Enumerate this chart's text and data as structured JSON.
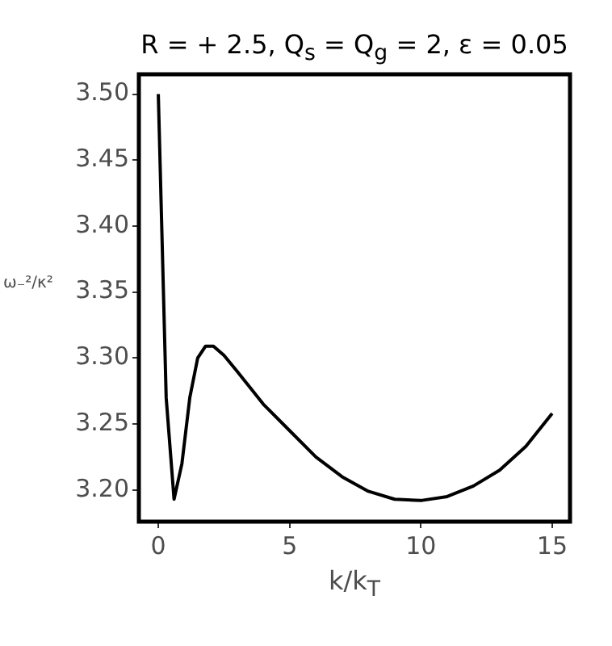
{
  "chart_data": {
    "type": "line",
    "title": "R = + 2.5, Q$_{s}$ = Q$_{g}$ = 2, ε = 0.05",
    "xlabel": "k/k$_{T}$",
    "ylabel": "ω₋²/κ²",
    "x": [
      0,
      0.3,
      0.6,
      0.9,
      1.2,
      1.5,
      1.8,
      2.1,
      2.5,
      3,
      4,
      5,
      6,
      7,
      8,
      9,
      10,
      11,
      12,
      13,
      14,
      15
    ],
    "series": [
      {
        "color": "#000000",
        "values": [
          3.5,
          3.27,
          3.193,
          3.22,
          3.27,
          3.3,
          3.309,
          3.309,
          3.302,
          3.29,
          3.265,
          3.245,
          3.225,
          3.21,
          3.199,
          3.193,
          3.192,
          3.195,
          3.203,
          3.215,
          3.233,
          3.258
        ]
      }
    ],
    "xlim": [
      -0.74,
      15.68
    ],
    "xticks": [
      0,
      5,
      10,
      15
    ],
    "ylim": [
      3.176,
      3.515
    ],
    "yticks": [
      {
        "value": 3.2,
        "label": "3.20"
      },
      {
        "value": 3.25,
        "label": "3.25"
      },
      {
        "value": 3.3,
        "label": "3.30"
      },
      {
        "value": 3.35,
        "label": "3.35"
      },
      {
        "value": 3.4,
        "label": "3.40"
      },
      {
        "value": 3.45,
        "label": "3.45"
      },
      {
        "value": 3.5,
        "label": "3.50"
      }
    ],
    "grid": false,
    "legend": false,
    "marker": "none",
    "line_style": "solid"
  }
}
